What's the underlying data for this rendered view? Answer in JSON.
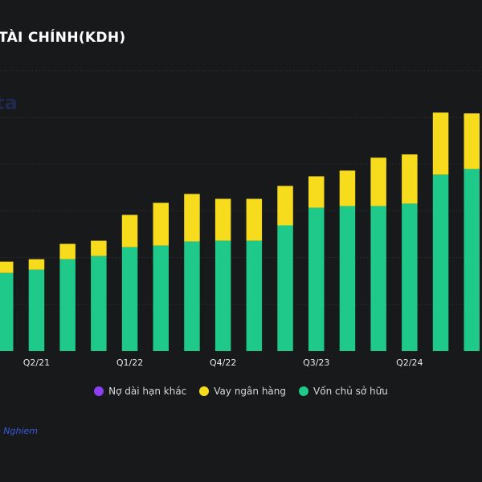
{
  "title": "TÀI CHÍNH(KDH)",
  "watermark": "ta",
  "source": "e Nghiem",
  "colors": {
    "background": "#18191b",
    "no_dai_han_khac": "#8b3ff0",
    "vay_ngan_hang": "#f7dc1e",
    "von_chu_so_huu": "#1ec98a",
    "gridline": "#2a2b2e"
  },
  "legend": [
    {
      "label": "Nợ dài hạn khác",
      "color": "#8b3ff0"
    },
    {
      "label": "Vay ngân hàng",
      "color": "#f7dc1e"
    },
    {
      "label": "Vốn chủ sở hữu",
      "color": "#1ec98a"
    }
  ],
  "chart_data": {
    "type": "bar",
    "stacked": true,
    "title": "TÀI CHÍNH(KDH)",
    "xlabel": "",
    "ylabel": "",
    "ylim": [
      0,
      30000
    ],
    "y_gridlines": [
      0,
      5000,
      10000,
      15000,
      20000,
      25000,
      30000
    ],
    "grid": true,
    "legend_position": "bottom",
    "categories": [
      "Q1/21",
      "Q2/21",
      "Q3/21",
      "Q4/21",
      "Q1/22",
      "Q2/22",
      "Q3/22",
      "Q4/22",
      "Q1/23",
      "Q2/23",
      "Q3/23",
      "Q4/23",
      "Q1/24",
      "Q2/24",
      "Q3/24",
      "Q4/24"
    ],
    "visible_tick_labels": [
      "Q2/21",
      "Q1/22",
      "Q4/22",
      "Q3/23",
      "Q2/24"
    ],
    "series": [
      {
        "name": "Vốn chủ sở hữu",
        "color": "#1ec98a",
        "values": [
          8360,
          8710,
          9830,
          10170,
          11120,
          11290,
          11720,
          11810,
          11810,
          13450,
          15340,
          15520,
          15520,
          15780,
          18880,
          19480
        ]
      },
      {
        "name": "Vay ngân hàng",
        "color": "#f7dc1e",
        "values": [
          1210,
          1120,
          1640,
          1640,
          3450,
          4570,
          5090,
          4480,
          4480,
          4220,
          3360,
          3790,
          5170,
          5260,
          6640,
          5950
        ]
      },
      {
        "name": "Nợ dài hạn khác",
        "color": "#8b3ff0",
        "values": [
          0,
          0,
          0,
          0,
          0,
          0,
          0,
          0,
          0,
          0,
          0,
          0,
          0,
          0,
          0,
          0
        ]
      }
    ]
  }
}
